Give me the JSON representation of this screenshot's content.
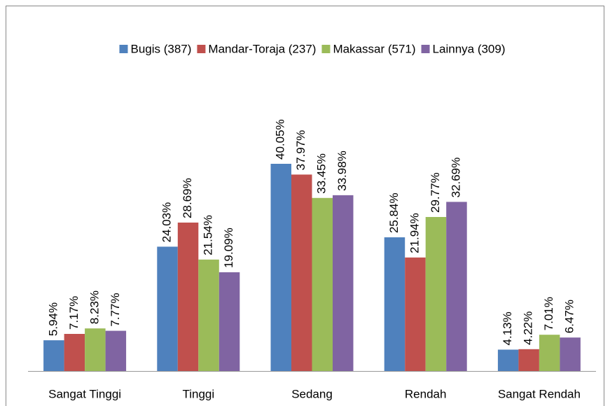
{
  "chart_data": {
    "type": "bar",
    "categories": [
      "Sangat Tinggi",
      "Tinggi",
      "Sedang",
      "Rendah",
      "Sangat Rendah"
    ],
    "series": [
      {
        "name": "Bugis (387)",
        "color": "#4f81bd",
        "values": [
          5.94,
          24.03,
          40.05,
          25.84,
          4.13
        ],
        "value_labels": [
          "5.94%",
          "24.03%",
          "40.05%",
          "25.84%",
          "4.13%"
        ]
      },
      {
        "name": "Mandar-Toraja (237)",
        "color": "#c0504d",
        "values": [
          7.17,
          28.69,
          37.97,
          21.94,
          4.22
        ],
        "value_labels": [
          "7.17%",
          "28.69%",
          "37.97%",
          "21.94%",
          "4.22%"
        ]
      },
      {
        "name": "Makassar (571)",
        "color": "#9bbb59",
        "values": [
          8.23,
          21.54,
          33.45,
          29.77,
          7.01
        ],
        "value_labels": [
          "8.23%",
          "21.54%",
          "33.45%",
          "29.77%",
          "7.01%"
        ]
      },
      {
        "name": "Lainnya (309)",
        "color": "#8064a2",
        "values": [
          7.77,
          19.09,
          33.98,
          32.69,
          6.47
        ],
        "value_labels": [
          "7.77%",
          "19.09%",
          "33.98%",
          "32.69%",
          "6.47%"
        ]
      }
    ],
    "legend": "top"
  }
}
